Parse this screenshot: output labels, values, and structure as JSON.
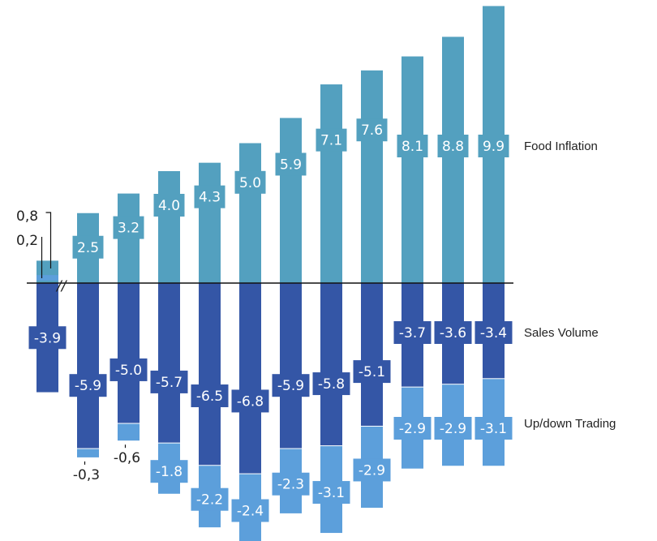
{
  "chart_data": {
    "type": "bar",
    "stacked": "diverging",
    "categories": [
      "",
      "",
      "",
      "",
      "",
      "",
      "",
      "",
      "",
      "",
      "",
      ""
    ],
    "series": [
      {
        "name": "Food Inflation",
        "color": "#53a0bf",
        "values": [
          0.8,
          2.5,
          3.2,
          4.0,
          4.3,
          5.0,
          5.9,
          7.1,
          7.6,
          8.1,
          8.8,
          9.9
        ],
        "labels": [
          "0,8",
          "2.5",
          "3.2",
          "4.0",
          "4.3",
          "5.0",
          "5.9",
          "7.1",
          "7.6",
          "8.1",
          "8.8",
          "9.9"
        ]
      },
      {
        "name": "Sales Volume",
        "color": "#3456a6",
        "values": [
          -3.9,
          -5.9,
          -5.0,
          -5.7,
          -6.5,
          -6.8,
          -5.9,
          -5.8,
          -5.1,
          -3.7,
          -3.6,
          -3.4
        ],
        "labels": [
          "-3.9",
          "-5.9",
          "-5.0",
          "-5.7",
          "-6.5",
          "-6.8",
          "-5.9",
          "-5.8",
          "-5.1",
          "-3.7",
          "-3.6",
          "-3.4"
        ]
      },
      {
        "name": "Up/down Trading",
        "color": "#5c9fdb",
        "values": [
          0.2,
          -0.3,
          -0.6,
          -1.8,
          -2.2,
          -2.4,
          -2.3,
          -3.1,
          -2.9,
          -2.9,
          -2.9,
          -3.1
        ],
        "labels": [
          "0,2",
          "-0,3",
          "-0,6",
          "-1.8",
          "-2.2",
          "-2.4",
          "-2.3",
          "-3.1",
          "-2.9",
          "-2.9",
          "-2.9",
          "-3.1"
        ]
      }
    ],
    "axis_break": "//",
    "grid": false,
    "legend": "right"
  },
  "colors": {
    "food_inflation": "#53a0bf",
    "sales_volume": "#3456a6",
    "up_down_trading": "#5c9fdb",
    "baseline": "#111111"
  }
}
